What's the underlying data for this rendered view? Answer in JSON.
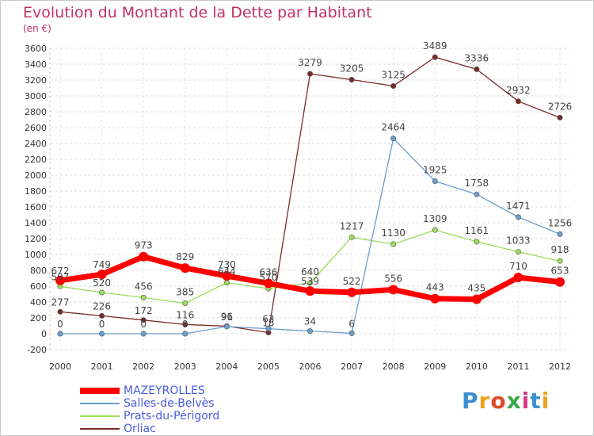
{
  "header": {
    "title": "Evolution du Montant de la Dette par Habitant",
    "subtitle": "(en €)"
  },
  "logo": {
    "text": "Proxiti",
    "colors": [
      "#3a8fd0",
      "#f0a020",
      "#e04a2a",
      "#3aa84a",
      "#d63a8a",
      "#3a8fd0",
      "#f0a020"
    ]
  },
  "chart_data": {
    "type": "line",
    "title": "Evolution du Montant de la Dette par Habitant",
    "subtitle": "(en €)",
    "xlabel": "",
    "ylabel": "",
    "ylim": [
      -200,
      3600
    ],
    "yticks": [
      -200,
      0,
      200,
      400,
      600,
      800,
      1000,
      1200,
      1400,
      1600,
      1800,
      2000,
      2200,
      2400,
      2600,
      2800,
      3000,
      3200,
      3400,
      3600
    ],
    "grid": true,
    "legend_position": "bottom-left",
    "categories": [
      "2000",
      "2001",
      "2002",
      "2003",
      "2004",
      "2005",
      "2006",
      "2007",
      "2008",
      "2009",
      "2010",
      "2011",
      "2012"
    ],
    "series": [
      {
        "name": "MAZEYROLLES",
        "color": "#ff0000",
        "width": "thick",
        "values": [
          672,
          749,
          973,
          829,
          730,
          636,
          539,
          522,
          556,
          443,
          435,
          710,
          653
        ],
        "labels": [
          "672",
          "749",
          "973",
          "829",
          "730",
          "636",
          "539",
          "522",
          "556",
          "443",
          "435",
          "710",
          "653"
        ]
      },
      {
        "name": "Salles-de-Belvès",
        "color": "#6a9ecf",
        "width": "thin",
        "values": [
          0,
          0,
          0,
          0,
          91,
          63,
          34,
          6,
          2464,
          1925,
          1758,
          1471,
          1256
        ],
        "labels": [
          "0",
          "0",
          "0",
          "0",
          "91",
          "63",
          "34",
          "6",
          "2464",
          "1925",
          "1758",
          "1471",
          "1256"
        ]
      },
      {
        "name": "Prats-du-Périgord",
        "color": "#9adf5a",
        "width": "thin",
        "values": [
          597,
          520,
          456,
          385,
          644,
          570,
          640,
          1217,
          1130,
          1309,
          1161,
          1033,
          918
        ],
        "labels": [
          "597",
          "520",
          "456",
          "385",
          "644",
          "570",
          "640",
          "1217",
          "1130",
          "1309",
          "1161",
          "1033",
          "918"
        ]
      },
      {
        "name": "Orliac",
        "color": "#7a2a2a",
        "width": "thin",
        "values": [
          277,
          226,
          172,
          116,
          96,
          15,
          3279,
          3205,
          3125,
          3489,
          3336,
          2932,
          2726
        ],
        "labels": [
          "277",
          "226",
          "172",
          "116",
          "96",
          "15",
          "3279",
          "3205",
          "3125",
          "3489",
          "3336",
          "2932",
          "2726"
        ]
      }
    ]
  }
}
